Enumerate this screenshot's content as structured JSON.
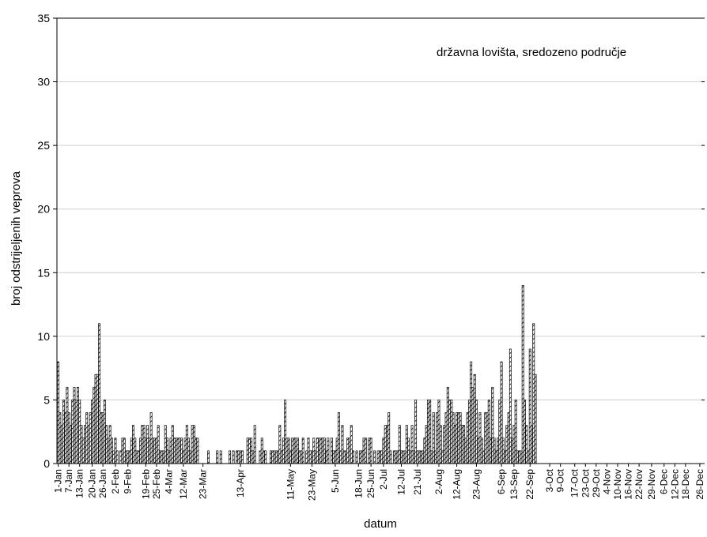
{
  "chart_data": {
    "type": "bar",
    "title": "",
    "annotation": "državna lovišta, sredozeno područje",
    "xlabel": "datum",
    "ylabel": "broj odstrijeljenih veprova",
    "ylim": [
      0,
      35
    ],
    "yticks": [
      0,
      5,
      10,
      15,
      20,
      25,
      30,
      35
    ],
    "grid": "horizontal",
    "bar_pattern": "diagonal-hatch",
    "colors": {
      "bar_stroke": "#000000",
      "grid": "#d0d0d0",
      "axis": "#000000"
    },
    "x_tick_labels": [
      {
        "day": 1,
        "label": "1-Jan"
      },
      {
        "day": 7,
        "label": "7-Jan"
      },
      {
        "day": 13,
        "label": "13-Jan"
      },
      {
        "day": 20,
        "label": "20-Jan"
      },
      {
        "day": 26,
        "label": "26-Jan"
      },
      {
        "day": 33,
        "label": "2-Feb"
      },
      {
        "day": 40,
        "label": "9-Feb"
      },
      {
        "day": 50,
        "label": "19-Feb"
      },
      {
        "day": 56,
        "label": "25-Feb"
      },
      {
        "day": 63,
        "label": "4-Mar"
      },
      {
        "day": 71,
        "label": "12-Mar"
      },
      {
        "day": 82,
        "label": "23-Mar"
      },
      {
        "day": 103,
        "label": "13-Apr"
      },
      {
        "day": 131,
        "label": "11-May"
      },
      {
        "day": 143,
        "label": "23-May"
      },
      {
        "day": 156,
        "label": "5-Jun"
      },
      {
        "day": 169,
        "label": "18-Jun"
      },
      {
        "day": 176,
        "label": "25-Jun"
      },
      {
        "day": 183,
        "label": "2-Jul"
      },
      {
        "day": 193,
        "label": "12-Jul"
      },
      {
        "day": 202,
        "label": "21-Jul"
      },
      {
        "day": 214,
        "label": "2-Aug"
      },
      {
        "day": 224,
        "label": "12-Aug"
      },
      {
        "day": 235,
        "label": "23-Aug"
      },
      {
        "day": 249,
        "label": "6-Sep"
      },
      {
        "day": 256,
        "label": "13-Sep"
      },
      {
        "day": 265,
        "label": "22-Sep"
      },
      {
        "day": 276,
        "label": "3-Oct"
      },
      {
        "day": 282,
        "label": "9-Oct"
      },
      {
        "day": 290,
        "label": "17-Oct"
      },
      {
        "day": 296,
        "label": "23-Oct"
      },
      {
        "day": 302,
        "label": "29-Oct"
      },
      {
        "day": 308,
        "label": "4-Nov"
      },
      {
        "day": 314,
        "label": "10-Nov"
      },
      {
        "day": 320,
        "label": "16-Nov"
      },
      {
        "day": 326,
        "label": "22-Nov"
      },
      {
        "day": 333,
        "label": "29-Nov"
      },
      {
        "day": 340,
        "label": "6-Dec"
      },
      {
        "day": 346,
        "label": "12-Dec"
      },
      {
        "day": 352,
        "label": "18-Dec"
      },
      {
        "day": 360,
        "label": "26-Dec"
      }
    ],
    "bars": [
      {
        "day": 1,
        "value": 8
      },
      {
        "day": 2,
        "value": 4
      },
      {
        "day": 3,
        "value": 3
      },
      {
        "day": 4,
        "value": 5
      },
      {
        "day": 5,
        "value": 4
      },
      {
        "day": 6,
        "value": 6
      },
      {
        "day": 7,
        "value": 4
      },
      {
        "day": 8,
        "value": 3
      },
      {
        "day": 9,
        "value": 5
      },
      {
        "day": 10,
        "value": 6
      },
      {
        "day": 11,
        "value": 5
      },
      {
        "day": 12,
        "value": 6
      },
      {
        "day": 13,
        "value": 5
      },
      {
        "day": 14,
        "value": 3
      },
      {
        "day": 15,
        "value": 2
      },
      {
        "day": 16,
        "value": 3
      },
      {
        "day": 17,
        "value": 4
      },
      {
        "day": 18,
        "value": 3
      },
      {
        "day": 19,
        "value": 4
      },
      {
        "day": 20,
        "value": 5
      },
      {
        "day": 21,
        "value": 6
      },
      {
        "day": 22,
        "value": 7
      },
      {
        "day": 23,
        "value": 7
      },
      {
        "day": 24,
        "value": 11
      },
      {
        "day": 25,
        "value": 4
      },
      {
        "day": 26,
        "value": 4
      },
      {
        "day": 27,
        "value": 5
      },
      {
        "day": 28,
        "value": 3
      },
      {
        "day": 29,
        "value": 2
      },
      {
        "day": 30,
        "value": 3
      },
      {
        "day": 31,
        "value": 2
      },
      {
        "day": 32,
        "value": 1
      },
      {
        "day": 33,
        "value": 2
      },
      {
        "day": 34,
        "value": 1
      },
      {
        "day": 36,
        "value": 1
      },
      {
        "day": 37,
        "value": 2
      },
      {
        "day": 38,
        "value": 2
      },
      {
        "day": 39,
        "value": 1
      },
      {
        "day": 40,
        "value": 1
      },
      {
        "day": 41,
        "value": 1
      },
      {
        "day": 42,
        "value": 2
      },
      {
        "day": 43,
        "value": 3
      },
      {
        "day": 44,
        "value": 2
      },
      {
        "day": 45,
        "value": 1
      },
      {
        "day": 46,
        "value": 1
      },
      {
        "day": 47,
        "value": 2
      },
      {
        "day": 48,
        "value": 3
      },
      {
        "day": 49,
        "value": 3
      },
      {
        "day": 50,
        "value": 2
      },
      {
        "day": 51,
        "value": 3
      },
      {
        "day": 52,
        "value": 2
      },
      {
        "day": 53,
        "value": 4
      },
      {
        "day": 54,
        "value": 2
      },
      {
        "day": 55,
        "value": 2
      },
      {
        "day": 56,
        "value": 2
      },
      {
        "day": 57,
        "value": 3
      },
      {
        "day": 58,
        "value": 1
      },
      {
        "day": 59,
        "value": 1
      },
      {
        "day": 60,
        "value": 1
      },
      {
        "day": 61,
        "value": 3
      },
      {
        "day": 62,
        "value": 2
      },
      {
        "day": 63,
        "value": 1
      },
      {
        "day": 64,
        "value": 2
      },
      {
        "day": 65,
        "value": 3
      },
      {
        "day": 66,
        "value": 2
      },
      {
        "day": 67,
        "value": 2
      },
      {
        "day": 68,
        "value": 2
      },
      {
        "day": 69,
        "value": 2
      },
      {
        "day": 70,
        "value": 2
      },
      {
        "day": 71,
        "value": 1
      },
      {
        "day": 72,
        "value": 2
      },
      {
        "day": 73,
        "value": 3
      },
      {
        "day": 74,
        "value": 2
      },
      {
        "day": 75,
        "value": 1
      },
      {
        "day": 76,
        "value": 3
      },
      {
        "day": 77,
        "value": 3
      },
      {
        "day": 78,
        "value": 2
      },
      {
        "day": 79,
        "value": 2
      },
      {
        "day": 85,
        "value": 1
      },
      {
        "day": 90,
        "value": 1
      },
      {
        "day": 92,
        "value": 1
      },
      {
        "day": 97,
        "value": 1
      },
      {
        "day": 99,
        "value": 1
      },
      {
        "day": 101,
        "value": 1
      },
      {
        "day": 102,
        "value": 1
      },
      {
        "day": 103,
        "value": 1
      },
      {
        "day": 104,
        "value": 1
      },
      {
        "day": 107,
        "value": 2
      },
      {
        "day": 108,
        "value": 2
      },
      {
        "day": 109,
        "value": 2
      },
      {
        "day": 110,
        "value": 1
      },
      {
        "day": 111,
        "value": 3
      },
      {
        "day": 114,
        "value": 1
      },
      {
        "day": 115,
        "value": 2
      },
      {
        "day": 116,
        "value": 1
      },
      {
        "day": 117,
        "value": 1
      },
      {
        "day": 120,
        "value": 1
      },
      {
        "day": 121,
        "value": 1
      },
      {
        "day": 122,
        "value": 1
      },
      {
        "day": 123,
        "value": 1
      },
      {
        "day": 124,
        "value": 1
      },
      {
        "day": 125,
        "value": 3
      },
      {
        "day": 126,
        "value": 1
      },
      {
        "day": 127,
        "value": 2
      },
      {
        "day": 128,
        "value": 5
      },
      {
        "day": 129,
        "value": 2
      },
      {
        "day": 130,
        "value": 2
      },
      {
        "day": 131,
        "value": 1
      },
      {
        "day": 132,
        "value": 2
      },
      {
        "day": 133,
        "value": 2
      },
      {
        "day": 134,
        "value": 2
      },
      {
        "day": 135,
        "value": 2
      },
      {
        "day": 136,
        "value": 1
      },
      {
        "day": 137,
        "value": 1
      },
      {
        "day": 138,
        "value": 2
      },
      {
        "day": 140,
        "value": 1
      },
      {
        "day": 141,
        "value": 2
      },
      {
        "day": 142,
        "value": 1
      },
      {
        "day": 143,
        "value": 1
      },
      {
        "day": 144,
        "value": 2
      },
      {
        "day": 145,
        "value": 1
      },
      {
        "day": 146,
        "value": 2
      },
      {
        "day": 147,
        "value": 2
      },
      {
        "day": 148,
        "value": 2
      },
      {
        "day": 149,
        "value": 2
      },
      {
        "day": 150,
        "value": 2
      },
      {
        "day": 151,
        "value": 1
      },
      {
        "day": 152,
        "value": 2
      },
      {
        "day": 154,
        "value": 2
      },
      {
        "day": 155,
        "value": 1
      },
      {
        "day": 156,
        "value": 1
      },
      {
        "day": 157,
        "value": 2
      },
      {
        "day": 158,
        "value": 4
      },
      {
        "day": 159,
        "value": 1
      },
      {
        "day": 160,
        "value": 3
      },
      {
        "day": 161,
        "value": 1
      },
      {
        "day": 162,
        "value": 1
      },
      {
        "day": 163,
        "value": 2
      },
      {
        "day": 164,
        "value": 2
      },
      {
        "day": 165,
        "value": 3
      },
      {
        "day": 166,
        "value": 1
      },
      {
        "day": 168,
        "value": 1
      },
      {
        "day": 170,
        "value": 1
      },
      {
        "day": 171,
        "value": 1
      },
      {
        "day": 172,
        "value": 2
      },
      {
        "day": 173,
        "value": 2
      },
      {
        "day": 175,
        "value": 2
      },
      {
        "day": 176,
        "value": 2
      },
      {
        "day": 178,
        "value": 1
      },
      {
        "day": 180,
        "value": 1
      },
      {
        "day": 181,
        "value": 1
      },
      {
        "day": 182,
        "value": 1
      },
      {
        "day": 183,
        "value": 2
      },
      {
        "day": 184,
        "value": 3
      },
      {
        "day": 185,
        "value": 3
      },
      {
        "day": 186,
        "value": 4
      },
      {
        "day": 187,
        "value": 1
      },
      {
        "day": 189,
        "value": 1
      },
      {
        "day": 190,
        "value": 1
      },
      {
        "day": 191,
        "value": 1
      },
      {
        "day": 192,
        "value": 3
      },
      {
        "day": 193,
        "value": 1
      },
      {
        "day": 194,
        "value": 1
      },
      {
        "day": 195,
        "value": 1
      },
      {
        "day": 196,
        "value": 3
      },
      {
        "day": 197,
        "value": 2
      },
      {
        "day": 198,
        "value": 1
      },
      {
        "day": 199,
        "value": 3
      },
      {
        "day": 200,
        "value": 1
      },
      {
        "day": 201,
        "value": 5
      },
      {
        "day": 202,
        "value": 1
      },
      {
        "day": 203,
        "value": 1
      },
      {
        "day": 204,
        "value": 1
      },
      {
        "day": 205,
        "value": 1
      },
      {
        "day": 206,
        "value": 2
      },
      {
        "day": 207,
        "value": 3
      },
      {
        "day": 208,
        "value": 5
      },
      {
        "day": 209,
        "value": 5
      },
      {
        "day": 210,
        "value": 1
      },
      {
        "day": 211,
        "value": 4
      },
      {
        "day": 212,
        "value": 1
      },
      {
        "day": 213,
        "value": 4
      },
      {
        "day": 214,
        "value": 5
      },
      {
        "day": 215,
        "value": 3
      },
      {
        "day": 216,
        "value": 1
      },
      {
        "day": 217,
        "value": 3
      },
      {
        "day": 218,
        "value": 4
      },
      {
        "day": 219,
        "value": 6
      },
      {
        "day": 220,
        "value": 5
      },
      {
        "day": 221,
        "value": 5
      },
      {
        "day": 222,
        "value": 4
      },
      {
        "day": 223,
        "value": 3
      },
      {
        "day": 224,
        "value": 4
      },
      {
        "day": 225,
        "value": 4
      },
      {
        "day": 226,
        "value": 4
      },
      {
        "day": 227,
        "value": 3
      },
      {
        "day": 228,
        "value": 3
      },
      {
        "day": 229,
        "value": 2
      },
      {
        "day": 230,
        "value": 4
      },
      {
        "day": 231,
        "value": 5
      },
      {
        "day": 232,
        "value": 8
      },
      {
        "day": 233,
        "value": 6
      },
      {
        "day": 234,
        "value": 7
      },
      {
        "day": 235,
        "value": 5
      },
      {
        "day": 236,
        "value": 2
      },
      {
        "day": 237,
        "value": 4
      },
      {
        "day": 238,
        "value": 2
      },
      {
        "day": 239,
        "value": 1
      },
      {
        "day": 240,
        "value": 4
      },
      {
        "day": 241,
        "value": 4
      },
      {
        "day": 242,
        "value": 5
      },
      {
        "day": 243,
        "value": 2
      },
      {
        "day": 244,
        "value": 6
      },
      {
        "day": 245,
        "value": 2
      },
      {
        "day": 246,
        "value": 1
      },
      {
        "day": 247,
        "value": 2
      },
      {
        "day": 248,
        "value": 5
      },
      {
        "day": 249,
        "value": 8
      },
      {
        "day": 250,
        "value": 2
      },
      {
        "day": 251,
        "value": 1
      },
      {
        "day": 252,
        "value": 3
      },
      {
        "day": 253,
        "value": 4
      },
      {
        "day": 254,
        "value": 9
      },
      {
        "day": 255,
        "value": 2
      },
      {
        "day": 256,
        "value": 3
      },
      {
        "day": 257,
        "value": 5
      },
      {
        "day": 258,
        "value": 1
      },
      {
        "day": 259,
        "value": 1
      },
      {
        "day": 260,
        "value": 1
      },
      {
        "day": 261,
        "value": 14
      },
      {
        "day": 262,
        "value": 5
      },
      {
        "day": 263,
        "value": 3
      },
      {
        "day": 264,
        "value": 1
      },
      {
        "day": 265,
        "value": 9
      },
      {
        "day": 266,
        "value": 3
      },
      {
        "day": 267,
        "value": 11
      },
      {
        "day": 268,
        "value": 7
      }
    ]
  }
}
